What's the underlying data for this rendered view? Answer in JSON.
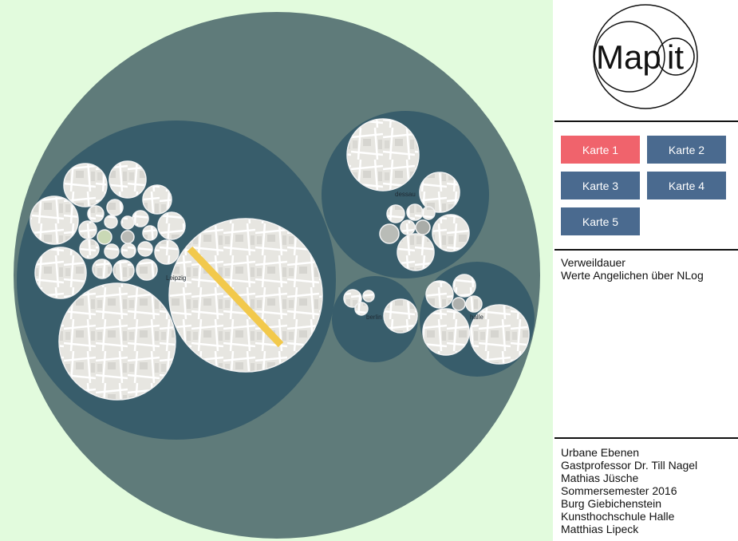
{
  "logo": {
    "text_left": "Map",
    "text_right": "it"
  },
  "map_buttons": [
    {
      "label": "Karte 1",
      "active": true
    },
    {
      "label": "Karte 2",
      "active": false
    },
    {
      "label": "Karte 3",
      "active": false
    },
    {
      "label": "Karte 4",
      "active": false
    },
    {
      "label": "Karte 5",
      "active": false
    }
  ],
  "info": {
    "line1": "Verweildauer",
    "line2": "Werte Angelichen über NLog"
  },
  "credits": [
    "Urbane Ebenen",
    "Gastprofessor Dr. Till Nagel",
    "Mathias Jüsche",
    "Sommersemester 2016",
    "Burg Giebichenstein",
    "Kunsthochschule Halle",
    "Matthias Lipeck"
  ],
  "cities": {
    "leipzig": "Leipzig",
    "dessau": "dessau",
    "berlin": "berlin",
    "halle": "halle"
  },
  "colors": {
    "background": "#e2fbdd",
    "outer": "#5f7b7a",
    "group": "#385d6b",
    "active": "#f0636c",
    "button": "#4a6a8f"
  }
}
